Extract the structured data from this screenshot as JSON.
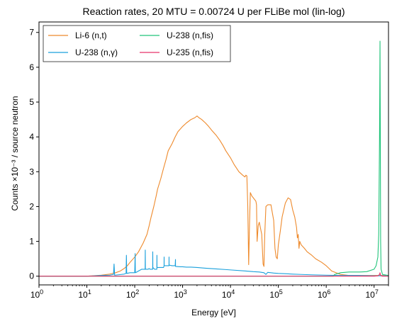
{
  "chart_data": {
    "type": "line",
    "title": "Reaction rates, 20 MTU = 0.00724 U per FLiBe mol (lin-log)",
    "xlabel": "Energy [eV]",
    "ylabel": "Counts ×10⁻³ / source neutron",
    "xscale": "log",
    "xlim": [
      1,
      20000000
    ],
    "ylim": [
      -0.25,
      7.3
    ],
    "x_ticks": [
      {
        "value": 1,
        "base": "10",
        "exp": "0"
      },
      {
        "value": 10,
        "base": "10",
        "exp": "1"
      },
      {
        "value": 100,
        "base": "10",
        "exp": "2"
      },
      {
        "value": 1000,
        "base": "10",
        "exp": "3"
      },
      {
        "value": 10000,
        "base": "10",
        "exp": "4"
      },
      {
        "value": 100000,
        "base": "10",
        "exp": "5"
      },
      {
        "value": 1000000,
        "base": "10",
        "exp": "6"
      },
      {
        "value": 10000000,
        "base": "10",
        "exp": "7"
      }
    ],
    "y_ticks": [
      {
        "value": 0,
        "label": "0"
      },
      {
        "value": 1,
        "label": "1"
      },
      {
        "value": 2,
        "label": "2"
      },
      {
        "value": 3,
        "label": "3"
      },
      {
        "value": 4,
        "label": "4"
      },
      {
        "value": 5,
        "label": "5"
      },
      {
        "value": 6,
        "label": "6"
      },
      {
        "value": 7,
        "label": "7"
      }
    ],
    "grid": false,
    "legend": {
      "placement": "top-left",
      "columns": 2
    },
    "series": [
      {
        "name": "Li-6 (n,t)",
        "color": "#ee8a2c",
        "x": [
          1,
          10,
          20,
          30,
          40,
          50,
          60,
          70,
          80,
          100,
          120,
          150,
          180,
          200,
          220,
          250,
          280,
          300,
          350,
          400,
          450,
          500,
          600,
          700,
          800,
          1000,
          1200,
          1500,
          1800,
          2000,
          2200,
          2500,
          3000,
          3500,
          4000,
          5000,
          6000,
          7000,
          8000,
          10000,
          12000,
          15000,
          18000,
          20000,
          21000,
          22000,
          23000,
          24000,
          25000,
          26000,
          28000,
          30000,
          32000,
          34000,
          35000,
          36000,
          38000,
          40000,
          45000,
          48000,
          50000,
          52000,
          55000,
          60000,
          70000,
          80000,
          85000,
          90000,
          95000,
          100000,
          110000,
          120000,
          140000,
          160000,
          180000,
          200000,
          220000,
          240000,
          250000,
          260000,
          270000,
          280000,
          300000,
          350000,
          400000,
          500000,
          600000,
          800000,
          1000000,
          1300000,
          1600000,
          2000000,
          3000000,
          5000000,
          7000000,
          10000000,
          12000000,
          13000000,
          14000000,
          15000000,
          20000000
        ],
        "y": [
          0,
          0,
          0.03,
          0.06,
          0.1,
          0.15,
          0.22,
          0.3,
          0.4,
          0.55,
          0.7,
          0.95,
          1.2,
          1.45,
          1.7,
          2.0,
          2.3,
          2.5,
          2.8,
          3.1,
          3.35,
          3.6,
          3.8,
          4.0,
          4.15,
          4.3,
          4.4,
          4.5,
          4.55,
          4.6,
          4.55,
          4.5,
          4.4,
          4.3,
          4.2,
          4.05,
          3.9,
          3.75,
          3.6,
          3.4,
          3.2,
          3.0,
          2.9,
          2.85,
          2.9,
          2.88,
          2.0,
          0.33,
          1.5,
          2.4,
          2.3,
          2.25,
          2.2,
          2.15,
          2.05,
          1.0,
          1.45,
          1.55,
          1.2,
          0.35,
          0.28,
          1.2,
          2.0,
          2.05,
          2.05,
          1.6,
          0.8,
          0.55,
          0.5,
          0.9,
          1.3,
          1.7,
          2.1,
          2.25,
          2.2,
          1.9,
          1.7,
          1.4,
          1.1,
          1.2,
          0.8,
          1.0,
          0.9,
          0.8,
          0.7,
          0.6,
          0.5,
          0.4,
          0.3,
          0.15,
          0.1,
          0.05,
          0.02,
          0.02,
          0.02,
          0.02,
          0.02,
          0.02,
          0.02,
          0.02,
          0.02
        ]
      },
      {
        "name": "U-238 (n,γ)",
        "color": "#1aa0dc",
        "x": [
          1,
          10,
          20,
          30,
          36,
          37,
          38,
          45,
          60,
          66,
          67,
          68,
          80,
          100,
          102,
          103,
          104,
          120,
          140,
          165,
          166,
          167,
          190,
          200,
          210,
          237,
          238,
          239,
          260,
          290,
          291,
          292,
          310,
          350,
          400,
          410,
          411,
          412,
          480,
          520,
          521,
          522,
          600,
          700,
          710,
          711,
          712,
          900,
          1000,
          1200,
          1500,
          2000,
          3000,
          5000,
          8000,
          10000,
          20000,
          30000,
          40000,
          50000,
          55000,
          60000,
          80000,
          100000,
          150000,
          200000,
          300000,
          500000,
          1000000,
          2000000,
          5000000,
          10000000,
          20000000
        ],
        "y": [
          0,
          0,
          0.02,
          0.03,
          0.05,
          0.35,
          0.03,
          0.04,
          0.06,
          0.08,
          0.6,
          0.08,
          0.1,
          0.1,
          0.65,
          0.12,
          0.1,
          0.15,
          0.2,
          0.2,
          0.75,
          0.2,
          0.2,
          0.22,
          0.2,
          0.2,
          0.7,
          0.25,
          0.2,
          0.2,
          0.6,
          0.25,
          0.25,
          0.25,
          0.25,
          0.3,
          0.55,
          0.3,
          0.3,
          0.3,
          0.55,
          0.32,
          0.3,
          0.3,
          0.48,
          0.3,
          0.28,
          0.27,
          0.27,
          0.26,
          0.26,
          0.25,
          0.23,
          0.21,
          0.19,
          0.18,
          0.15,
          0.13,
          0.12,
          0.1,
          0.05,
          0.11,
          0.09,
          0.08,
          0.07,
          0.06,
          0.05,
          0.04,
          0.03,
          0.02,
          0.02,
          0.01,
          0.01
        ]
      },
      {
        "name": "U-238 (n,fis)",
        "color": "#22c47a",
        "x": [
          1,
          100000,
          1000000,
          1400000,
          1500000,
          2000000,
          3000000,
          5000000,
          7000000,
          10000000,
          11000000,
          12000000,
          12500000,
          13000000,
          13300000,
          13500000,
          13700000,
          14000000,
          15000000,
          20000000
        ],
        "y": [
          0,
          0,
          0,
          0,
          0.05,
          0.1,
          0.12,
          0.12,
          0.13,
          0.2,
          0.3,
          0.55,
          1.2,
          4.0,
          6.75,
          4.0,
          1.0,
          0.2,
          0.05,
          0.02
        ]
      },
      {
        "name": "U-235 (n,fis)",
        "color": "#e8336b",
        "x": [
          1,
          100000,
          1000000,
          10000000,
          12000000,
          13000000,
          13300000,
          13500000,
          14000000,
          15000000,
          20000000
        ],
        "y": [
          0,
          0,
          0,
          0,
          0.01,
          0.05,
          0.1,
          0.05,
          0.01,
          0,
          0
        ]
      }
    ]
  }
}
